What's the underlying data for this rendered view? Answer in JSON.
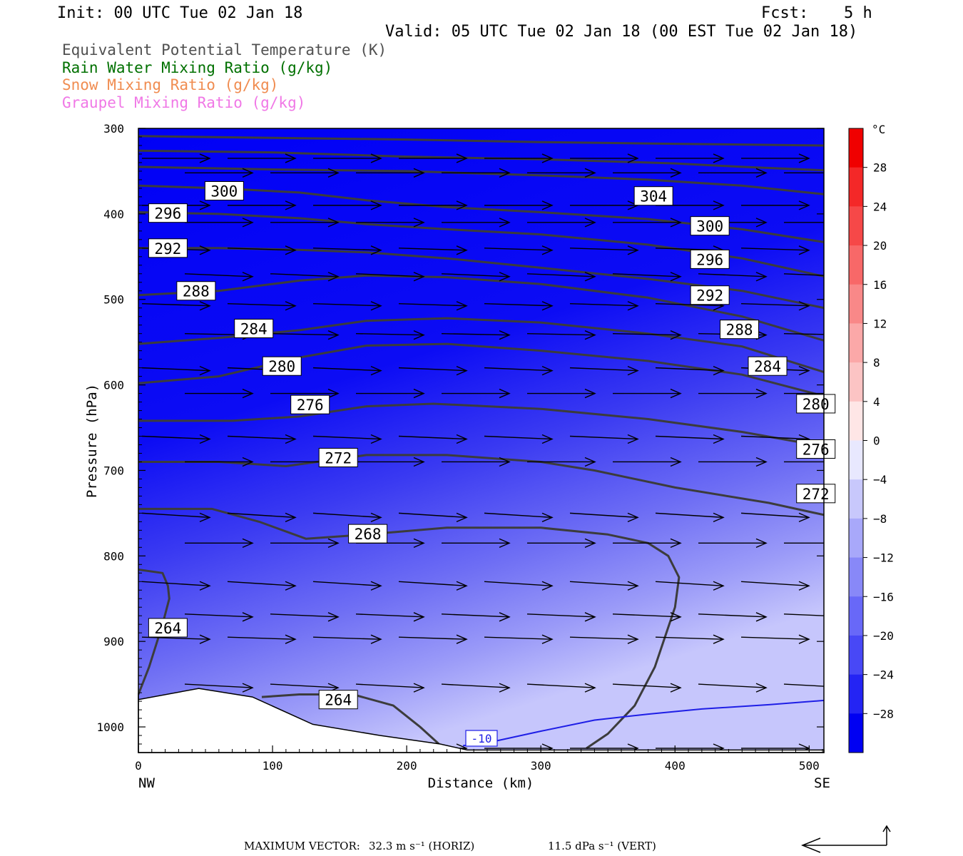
{
  "header": {
    "init": "Init: 00 UTC Tue 02 Jan 18",
    "fcst_label": "Fcst:",
    "fcst_value": "5 h",
    "valid": "Valid: 05 UTC Tue 02 Jan 18 (00 EST Tue 02 Jan 18)"
  },
  "legend": {
    "items": [
      {
        "label": "Equivalent Potential Temperature (K)",
        "color": "#505050"
      },
      {
        "label": "Rain Water Mixing Ratio (g/kg)",
        "color": "#007000"
      },
      {
        "label": "Snow Mixing Ratio (g/kg)",
        "color": "#f08c50"
      },
      {
        "label": "Graupel Mixing Ratio (g/kg)",
        "color": "#f078e6"
      }
    ]
  },
  "colorbar": {
    "unit": "°C",
    "labels": [
      "28",
      "24",
      "20",
      "16",
      "12",
      "8",
      "4",
      "0",
      "−4",
      "−8",
      "−12",
      "−16",
      "−20",
      "−24",
      "−28"
    ]
  },
  "footer": {
    "max_vector_label": "MAXIMUM VECTOR:",
    "horiz": "32.3 m s⁻¹ (HORIZ)",
    "vert": "11.5 dPa s⁻¹ (VERT)"
  },
  "chart_data": {
    "type": "contour",
    "xlabel": "Distance (km)",
    "ylabel": "Pressure (hPa)",
    "x_left_label": "NW",
    "x_right_label": "SE",
    "xlim": [
      0,
      511
    ],
    "ylim": [
      1030,
      300
    ],
    "x_ticks": [
      0,
      100,
      200,
      300,
      400,
      500
    ],
    "y_ticks": [
      300,
      400,
      500,
      600,
      700,
      800,
      900,
      1000
    ],
    "y_scale": "pressure (inverted)",
    "shaded_field": "temperature (°C)",
    "isotherm_label": "-10",
    "isotherm_color": "#1e1ee6",
    "theta_e_contours": [
      {
        "level": 264,
        "label": "264",
        "points": [
          [
            0,
            962
          ],
          [
            8,
            930
          ],
          [
            18,
            880
          ],
          [
            23,
            850
          ],
          [
            22,
            835
          ],
          [
            18,
            820
          ],
          [
            0,
            816
          ]
        ]
      },
      {
        "level": 264,
        "label": "264",
        "points": [
          [
            92,
            965
          ],
          [
            120,
            962
          ],
          [
            160,
            962
          ],
          [
            190,
            975
          ],
          [
            210,
            1000
          ],
          [
            224,
            1020
          ]
        ]
      },
      {
        "level": 264,
        "label": "",
        "points": [
          [
            334,
            1025
          ],
          [
            350,
            1008
          ],
          [
            370,
            975
          ],
          [
            385,
            930
          ],
          [
            400,
            860
          ],
          [
            403,
            825
          ],
          [
            395,
            800
          ],
          [
            380,
            785
          ],
          [
            350,
            775
          ],
          [
            300,
            767
          ],
          [
            230,
            767
          ],
          [
            170,
            775
          ],
          [
            125,
            780
          ],
          [
            90,
            760
          ],
          [
            55,
            745
          ],
          [
            0,
            745
          ]
        ]
      },
      {
        "level": 272,
        "label": "272",
        "points": [
          [
            0,
            690
          ],
          [
            60,
            690
          ],
          [
            110,
            695
          ],
          [
            170,
            682
          ],
          [
            230,
            682
          ],
          [
            300,
            690
          ],
          [
            340,
            700
          ],
          [
            400,
            720
          ],
          [
            470,
            738
          ],
          [
            511,
            752
          ]
        ]
      },
      {
        "level": 276,
        "label": "276",
        "points": [
          [
            0,
            642
          ],
          [
            70,
            642
          ],
          [
            120,
            637
          ],
          [
            170,
            625
          ],
          [
            220,
            622
          ],
          [
            300,
            628
          ],
          [
            380,
            640
          ],
          [
            450,
            655
          ],
          [
            511,
            672
          ]
        ]
      },
      {
        "level": 280,
        "label": "280",
        "points": [
          [
            0,
            598
          ],
          [
            60,
            590
          ],
          [
            120,
            568
          ],
          [
            170,
            554
          ],
          [
            230,
            552
          ],
          [
            300,
            560
          ],
          [
            380,
            572
          ],
          [
            450,
            588
          ],
          [
            511,
            613
          ]
        ]
      },
      {
        "level": 284,
        "label": "284",
        "points": [
          [
            0,
            552
          ],
          [
            60,
            545
          ],
          [
            120,
            536
          ],
          [
            170,
            525
          ],
          [
            230,
            522
          ],
          [
            300,
            527
          ],
          [
            380,
            540
          ],
          [
            450,
            555
          ],
          [
            511,
            585
          ]
        ]
      },
      {
        "level": 288,
        "label": "288",
        "points": [
          [
            0,
            495
          ],
          [
            60,
            490
          ],
          [
            120,
            478
          ],
          [
            170,
            472
          ],
          [
            230,
            474
          ],
          [
            300,
            482
          ],
          [
            380,
            498
          ],
          [
            450,
            520
          ],
          [
            511,
            548
          ]
        ]
      },
      {
        "level": 292,
        "label": "292",
        "points": [
          [
            0,
            440
          ],
          [
            60,
            440
          ],
          [
            120,
            442
          ],
          [
            170,
            445
          ],
          [
            230,
            452
          ],
          [
            300,
            463
          ],
          [
            380,
            476
          ],
          [
            450,
            490
          ],
          [
            511,
            510
          ]
        ]
      },
      {
        "level": 296,
        "label": "296",
        "points": [
          [
            0,
            398
          ],
          [
            60,
            400
          ],
          [
            120,
            405
          ],
          [
            170,
            412
          ],
          [
            230,
            418
          ],
          [
            300,
            424
          ],
          [
            380,
            436
          ],
          [
            450,
            452
          ],
          [
            511,
            473
          ]
        ]
      },
      {
        "level": 300,
        "label": "300",
        "points": [
          [
            0,
            367
          ],
          [
            60,
            370
          ],
          [
            120,
            375
          ],
          [
            170,
            384
          ],
          [
            230,
            392
          ],
          [
            300,
            398
          ],
          [
            380,
            406
          ],
          [
            450,
            418
          ],
          [
            511,
            433
          ]
        ]
      },
      {
        "level": 304,
        "label": "304",
        "points": [
          [
            0,
            345
          ],
          [
            100,
            348
          ],
          [
            200,
            350
          ],
          [
            300,
            355
          ],
          [
            380,
            360
          ],
          [
            450,
            367
          ],
          [
            511,
            377
          ]
        ]
      },
      {
        "level": 308,
        "label": "",
        "points": [
          [
            0,
            326
          ],
          [
            100,
            328
          ],
          [
            200,
            333
          ],
          [
            300,
            336
          ],
          [
            400,
            341
          ],
          [
            450,
            345
          ],
          [
            511,
            349
          ]
        ]
      },
      {
        "level": 312,
        "label": "",
        "points": [
          [
            0,
            309
          ],
          [
            100,
            311
          ],
          [
            200,
            313
          ],
          [
            300,
            316
          ],
          [
            400,
            318
          ],
          [
            511,
            320
          ]
        ]
      }
    ],
    "contour_labels": [
      {
        "text": "264",
        "x": 22,
        "p": 884
      },
      {
        "text": "264",
        "x": 149,
        "p": 968
      },
      {
        "text": "268",
        "x": 171,
        "p": 774
      },
      {
        "text": "272",
        "x": 149,
        "p": 685
      },
      {
        "text": "276",
        "x": 128,
        "p": 623
      },
      {
        "text": "280",
        "x": 107,
        "p": 578
      },
      {
        "text": "284",
        "x": 86,
        "p": 534
      },
      {
        "text": "288",
        "x": 43,
        "p": 490
      },
      {
        "text": "292",
        "x": 22,
        "p": 440
      },
      {
        "text": "296",
        "x": 22,
        "p": 399
      },
      {
        "text": "300",
        "x": 64,
        "p": 373
      },
      {
        "text": "304",
        "x": 384,
        "p": 379
      },
      {
        "text": "300",
        "x": 426,
        "p": 414
      },
      {
        "text": "296",
        "x": 426,
        "p": 453
      },
      {
        "text": "292",
        "x": 426,
        "p": 495
      },
      {
        "text": "288",
        "x": 448,
        "p": 535
      },
      {
        "text": "284",
        "x": 469,
        "p": 578
      },
      {
        "text": "280",
        "x": 505,
        "p": 622
      },
      {
        "text": "276",
        "x": 505,
        "p": 675
      },
      {
        "text": "272",
        "x": 505,
        "p": 727
      }
    ],
    "wind_vector_rows": [
      {
        "p": 335,
        "dy": 0
      },
      {
        "p": 352,
        "dy": 0
      },
      {
        "p": 390,
        "dy": 0
      },
      {
        "p": 410,
        "dy": 0
      },
      {
        "p": 440,
        "dy": 3
      },
      {
        "p": 470,
        "dy": 4
      },
      {
        "p": 505,
        "dy": 3
      },
      {
        "p": 540,
        "dy": 2
      },
      {
        "p": 580,
        "dy": 4
      },
      {
        "p": 610,
        "dy": 0
      },
      {
        "p": 660,
        "dy": 4
      },
      {
        "p": 690,
        "dy": 0
      },
      {
        "p": 750,
        "dy": 6
      },
      {
        "p": 785,
        "dy": 0
      },
      {
        "p": 830,
        "dy": 6
      },
      {
        "p": 868,
        "dy": 4
      },
      {
        "p": 895,
        "dy": 3
      },
      {
        "p": 950,
        "dy": 5
      },
      {
        "p": 1025,
        "dy": 0
      }
    ]
  }
}
